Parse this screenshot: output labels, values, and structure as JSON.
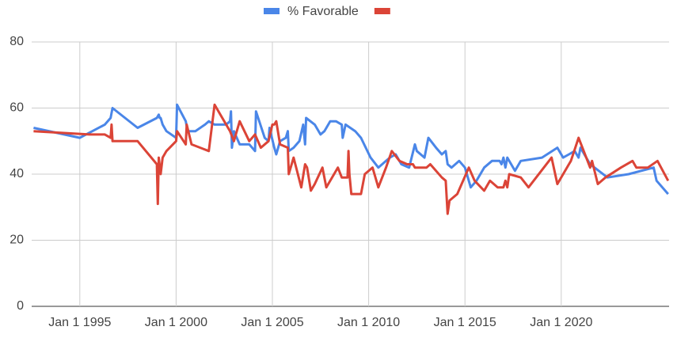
{
  "chart_data": {
    "type": "line",
    "series": [
      {
        "name": "% Favorable",
        "color": "#4a86e8",
        "x": [
          1992.6,
          1995,
          1996.3,
          1996.6,
          1996.7,
          1998,
          1999,
          1999.1,
          1999.15,
          1999.2,
          1999.3,
          1999.5,
          2000,
          2000.05,
          2000.5,
          2000.6,
          2001,
          2001.5,
          2001.7,
          2002,
          2002.6,
          2002.8,
          2002.85,
          2002.9,
          2003,
          2003.3,
          2003.8,
          2004.1,
          2004.15,
          2004.6,
          2004.8,
          2004.85,
          2005.1,
          2005.2,
          2005.4,
          2005.7,
          2005.8,
          2005.85,
          2006.1,
          2006.4,
          2006.6,
          2006.7,
          2006.75,
          2007.2,
          2007.5,
          2007.7,
          2008,
          2008.3,
          2008.6,
          2008.65,
          2008.8,
          2009.3,
          2009.6,
          2010.1,
          2010.5,
          2010.9,
          2011.1,
          2011.4,
          2011.7,
          2012.1,
          2012.4,
          2012.5,
          2012.9,
          2013.1,
          2013.5,
          2013.8,
          2014,
          2014.1,
          2014.3,
          2014.7,
          2015,
          2015.3,
          2015.6,
          2016,
          2016.4,
          2016.8,
          2016.9,
          2017,
          2017.1,
          2017.2,
          2017.6,
          2017.9,
          2019,
          2019.8,
          2020.1,
          2020.4,
          2020.7,
          2020.9,
          2021,
          2021.5,
          2022.4,
          2023.5,
          2024.8,
          2024.95,
          2025.55
        ],
        "values": [
          54,
          51,
          55,
          57,
          60,
          54,
          57,
          58,
          57,
          57,
          55,
          53,
          51,
          61,
          56,
          53,
          53,
          55,
          56,
          55,
          55,
          56,
          59,
          48,
          53,
          49,
          49,
          47,
          59,
          51,
          50,
          54,
          48,
          46,
          50,
          51,
          53,
          47,
          48,
          50,
          55,
          49,
          57,
          55,
          52,
          53,
          56,
          56,
          55,
          51,
          55,
          53,
          51,
          45,
          42,
          44,
          45,
          46,
          43,
          42,
          49,
          47,
          45,
          51,
          48,
          46,
          47,
          43,
          42,
          44,
          42,
          36,
          38,
          42,
          44,
          44,
          43,
          45,
          42,
          45,
          41,
          44,
          45,
          48,
          45,
          46,
          47,
          45,
          48,
          43,
          39,
          40,
          42,
          38,
          34
        ]
      },
      {
        "color": "#db4437",
        "x": [
          1992.6,
          1995.5,
          1996.3,
          1996.6,
          1996.65,
          1996.7,
          1998,
          1999,
          1999.05,
          1999.1,
          1999.2,
          1999.3,
          1999.5,
          2000,
          2000.05,
          2000.5,
          2000.55,
          2000.8,
          2001.7,
          2002,
          2002.8,
          2003,
          2003.3,
          2003.8,
          2004.1,
          2004.4,
          2004.8,
          2005,
          2005.1,
          2005.2,
          2005.4,
          2005.8,
          2005.85,
          2006.1,
          2006.5,
          2006.7,
          2006.8,
          2007,
          2007.2,
          2007.6,
          2007.8,
          2008.4,
          2008.6,
          2008.9,
          2008.95,
          2009,
          2009.1,
          2009.6,
          2009.8,
          2010.2,
          2010.5,
          2010.9,
          2011.2,
          2011.6,
          2012,
          2012.3,
          2012.4,
          2013,
          2013.2,
          2013.8,
          2014,
          2014.1,
          2014.2,
          2014.6,
          2015.2,
          2015.5,
          2016,
          2016.3,
          2016.7,
          2017,
          2017.1,
          2017.2,
          2017.3,
          2017.9,
          2018.3,
          2019.5,
          2019.8,
          2020.4,
          2020.5,
          2020.9,
          2021.5,
          2021.6,
          2021.9,
          2022.3,
          2023.1,
          2023.7,
          2023.9,
          2024.5,
          2025.0,
          2025.55
        ],
        "values": [
          53,
          52,
          52,
          51,
          55,
          50,
          50,
          43,
          31,
          45,
          40,
          45,
          47,
          50,
          53,
          49,
          55,
          49,
          47,
          61,
          53,
          50,
          56,
          50,
          52,
          48,
          50,
          55,
          55,
          56,
          49,
          48,
          40,
          45,
          36,
          43,
          42,
          35,
          37,
          42,
          36,
          42,
          39,
          39,
          47,
          40,
          34,
          34,
          40,
          42,
          36,
          42,
          47,
          44,
          43,
          43,
          42,
          42,
          43,
          39,
          38,
          28,
          32,
          34,
          42,
          38,
          35,
          38,
          36,
          36,
          38,
          36,
          40,
          39,
          36,
          45,
          37,
          43,
          44,
          51,
          42,
          44,
          37,
          39,
          42,
          44,
          42,
          42,
          44,
          38
        ]
      }
    ],
    "xlim": [
      1992.5,
      2025.6
    ],
    "xticks": [
      {
        "value": 1995,
        "label": "Jan 1 1995"
      },
      {
        "value": 2000,
        "label": "Jan 1 2000"
      },
      {
        "value": 2005,
        "label": "Jan 1 2005"
      },
      {
        "value": 2010,
        "label": "Jan 1 2010"
      },
      {
        "value": 2015,
        "label": "Jan 1 2015"
      },
      {
        "value": 2020,
        "label": "Jan 1 2020"
      }
    ],
    "ylim": [
      0,
      80
    ],
    "yticks": [
      0,
      20,
      40,
      60,
      80
    ],
    "grid": true,
    "legend": "top"
  }
}
